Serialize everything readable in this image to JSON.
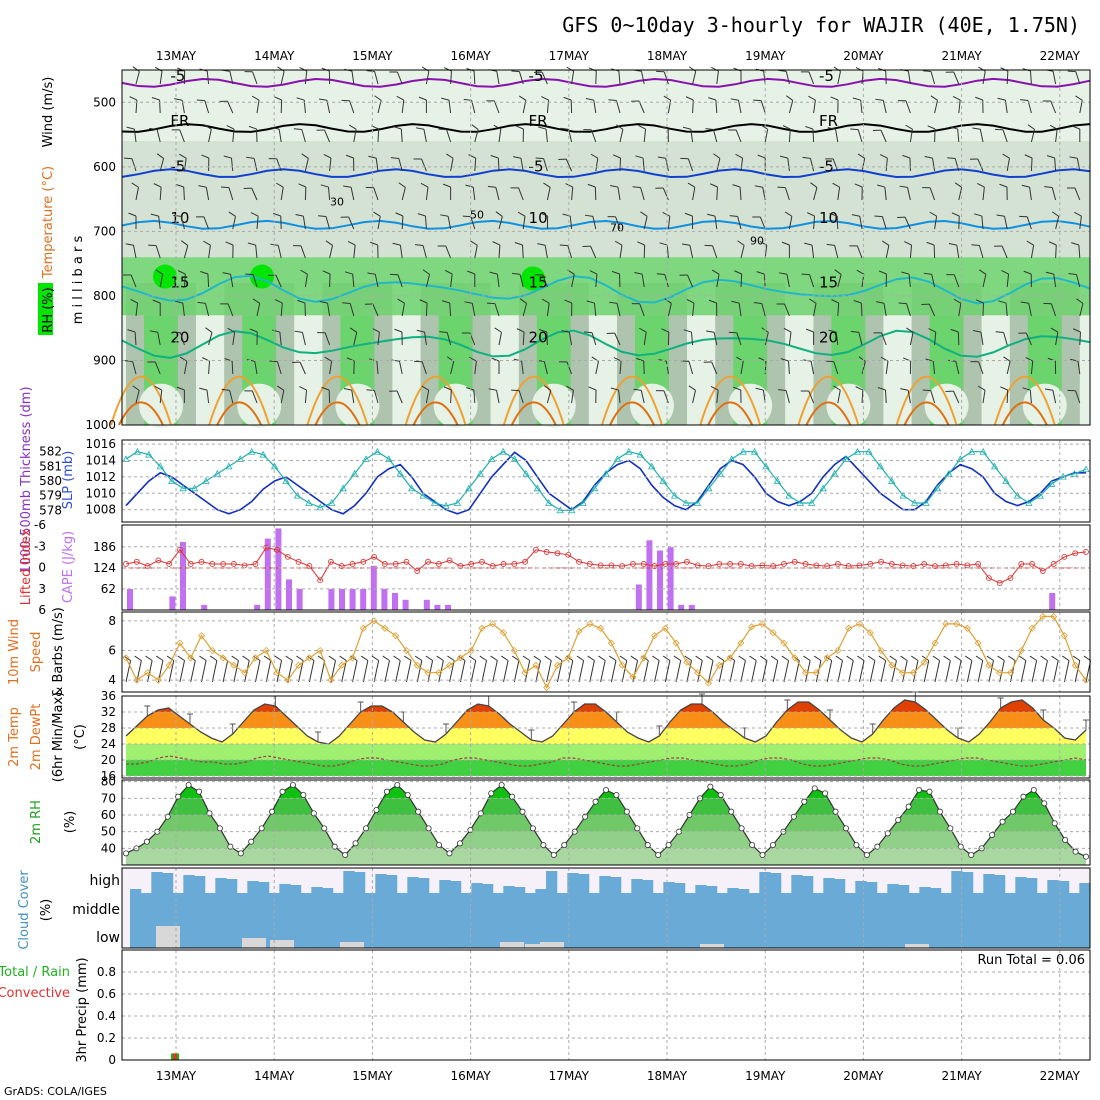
{
  "title": "GFS 0~10day 3-hourly for WAJIR (40E, 1.75N)",
  "credit": "GrADS: COLA/IGES",
  "dates": [
    "13MAY",
    "14MAY",
    "15MAY",
    "16MAY",
    "17MAY",
    "18MAY",
    "19MAY",
    "20MAY",
    "21MAY",
    "22MAY"
  ],
  "colors": {
    "grid": "#aaaaaa",
    "rh_light": "#e6f2e6",
    "rh_mid": "#c4d6c4",
    "rh_dark": "#a8bfa8",
    "rh_green": "#6cd46c",
    "rh_bright": "#00e600",
    "cloud": "#6aaad6",
    "cloud_bg": "#f6f0f8",
    "slp": "#1030c0",
    "thick": "#20b0b0",
    "cape": "#c070f0",
    "li": "#e03030",
    "wind": "#e0a030",
    "temp_hot": "#e04000",
    "temp_mid": "#f89018",
    "temp_warm": "#ffd040",
    "temp_yellow": "#ffff60",
    "dew_green": "#40d040",
    "rh_fill": "#30c030",
    "precip_green": "#00c000",
    "precip_red": "#e03030"
  },
  "chart_data": [
    {
      "panel": "upper-air",
      "type": "contour",
      "ylabel": "m i l l i b a r s",
      "side_labels": [
        "RH (%)",
        "Temperature (°C)",
        "Wind (m/s)"
      ],
      "y_ticks": [
        "500",
        "600",
        "700",
        "800",
        "900",
        "1000"
      ],
      "temperature_contours": [
        {
          "label": "-5",
          "color": "#8a10b0",
          "level_mb": 470
        },
        {
          "label": "FR",
          "color": "#000000",
          "level_mb": 540
        },
        {
          "label": "-5",
          "color": "#1040d0",
          "level_mb": 610
        },
        {
          "label": "10",
          "color": "#1090e0",
          "level_mb": 690
        },
        {
          "label": "15",
          "color": "#20b8c8",
          "level_mb": 790
        },
        {
          "label": "20",
          "color": "#10b080",
          "level_mb": 875
        }
      ],
      "rh_labels": [
        "30",
        "50",
        "70",
        "90"
      ]
    },
    {
      "panel": "thickness-slp",
      "type": "line",
      "ylabel_left": "1000-500mb Thickness (dm)",
      "ylabel_right": "SLP (mb)",
      "left_ticks": [
        "582",
        "581",
        "580",
        "579",
        "578"
      ],
      "right_ticks": [
        "1016",
        "1014",
        "1012",
        "1010",
        "1008"
      ],
      "series": [
        {
          "name": "SLP",
          "axis": "right",
          "values": [
            1008.5,
            1010,
            1011.5,
            1012.5,
            1012,
            1011,
            1010,
            1009,
            1008,
            1007.5,
            1008,
            1009,
            1010.5,
            1011.5,
            1012,
            1011,
            1010,
            1009,
            1008,
            1007.5,
            1008.5,
            1010,
            1012,
            1013,
            1013.5,
            1012,
            1010,
            1009,
            1008,
            1007.5,
            1008,
            1010,
            1012,
            1013.5,
            1015,
            1014,
            1012,
            1010,
            1009,
            1008,
            1009,
            1011,
            1012.5,
            1013.5,
            1014,
            1013,
            1011,
            1009.5,
            1008.5,
            1008,
            1009,
            1011,
            1013,
            1014,
            1013.5,
            1012,
            1010,
            1009,
            1008.5,
            1009,
            1010,
            1012,
            1013.5,
            1014.5,
            1013,
            1011.5,
            1010,
            1009,
            1008,
            1008,
            1009,
            1011,
            1012.5,
            1013.5,
            1013,
            1012,
            1010,
            1009,
            1008.5,
            1009,
            1010,
            1011.5,
            1012,
            1012.5,
            1012.5
          ]
        },
        {
          "name": "Thickness",
          "axis": "left",
          "values": [
            581.5,
            582,
            581.8,
            581,
            580,
            579.5,
            579.5,
            580,
            580.5,
            581,
            581.5,
            582,
            581.8,
            581,
            580,
            579,
            578.5,
            578.2,
            578.5,
            579.5,
            580.5,
            581.5,
            582,
            581.5,
            580.5,
            579.5,
            579,
            578.5,
            578.3,
            578.5,
            579.5,
            580.5,
            581.5,
            582,
            581.5,
            580.5,
            579.5,
            578.5,
            578,
            578,
            578.5,
            579.5,
            580.5,
            581.5,
            582,
            581.8,
            581,
            580,
            579,
            578.5,
            578.5,
            579.5,
            580.5,
            581.5,
            582,
            582,
            581,
            580,
            579,
            578.5,
            578.5,
            579.5,
            580.5,
            581.5,
            582,
            582,
            581,
            580,
            579,
            578.5,
            578.5,
            579.5,
            580.5,
            581.5,
            582,
            582,
            581,
            580,
            579,
            578.5,
            579,
            579.8,
            580.3,
            580.5,
            580.8
          ]
        }
      ]
    },
    {
      "panel": "cape-li",
      "type": "bar",
      "ylabel_left": "Lifted Index",
      "ylabel_right": "CAPE (J/kg)",
      "left_ticks": [
        "-6",
        "-3",
        "0",
        "3",
        "6"
      ],
      "right_ticks": [
        "186",
        "124",
        "62"
      ],
      "cape": [
        62,
        0,
        0,
        0,
        40,
        200,
        0,
        15,
        0,
        0,
        0,
        0,
        15,
        210,
        240,
        90,
        62,
        0,
        0,
        62,
        62,
        62,
        62,
        130,
        62,
        50,
        30,
        0,
        30,
        15,
        15,
        0,
        0,
        0,
        0,
        0,
        0,
        0,
        0,
        0,
        0,
        0,
        0,
        0,
        0,
        0,
        0,
        0,
        75,
        205,
        175,
        185,
        15,
        15,
        0,
        0,
        0,
        0,
        0,
        0,
        0,
        0,
        0,
        0,
        0,
        0,
        0,
        0,
        0,
        0,
        0,
        0,
        0,
        0,
        0,
        0,
        0,
        0,
        0,
        0,
        0,
        0,
        0,
        0,
        0,
        0,
        0,
        50,
        0,
        0,
        0,
        0,
        0,
        0,
        0,
        0,
        0,
        0,
        0,
        0,
        0,
        0,
        0,
        0,
        0,
        0,
        0,
        0,
        0,
        0,
        0,
        0,
        0,
        0,
        0,
        0,
        0,
        0,
        0,
        0,
        0,
        0,
        0,
        0,
        0,
        0,
        0,
        0,
        0,
        0,
        0,
        0,
        0,
        0,
        0,
        0,
        0,
        0,
        0,
        0,
        0,
        0,
        0,
        0,
        0,
        0,
        0,
        0,
        0,
        0,
        0
      ],
      "li": [
        -0.5,
        -0.8,
        -0.2,
        -1,
        -0.5,
        -2.5,
        -0.5,
        -0.8,
        -0.5,
        -0.5,
        -0.5,
        -0.3,
        -0.5,
        -2.8,
        -2.5,
        -1.5,
        -0.8,
        -0.2,
        1.8,
        -0.8,
        -0.2,
        -0.5,
        -0.8,
        -1.5,
        -0.5,
        -0.5,
        -0.8,
        0.5,
        -0.8,
        -0.5,
        -1,
        -0.2,
        -0.5,
        -0.8,
        -0.2,
        -0.5,
        -0.5,
        -0.8,
        -2.5,
        -2.2,
        -2,
        -1.8,
        -0.8,
        -0.5,
        -0.3,
        -0.3,
        -0.2,
        -0.5,
        -0.5,
        -0.2,
        -0.5,
        -0.5,
        -0.8,
        -0.3,
        -0.2,
        -0.5,
        -0.5,
        -0.5,
        -0.2,
        -0.3,
        -0.2,
        -0.5,
        -0.8,
        -0.5,
        -0.3,
        -0.2,
        -0.5,
        -0.2,
        -0.3,
        -0.5,
        -0.8,
        -0.5,
        -0.3,
        -0.2,
        -0.5,
        -0.2,
        -0.3,
        -0.5,
        -0.3,
        -0.5,
        1.5,
        2.2,
        1.5,
        -0.5,
        -0.5,
        0.5,
        -0.5,
        -1.5,
        -2,
        -2.2
      ]
    },
    {
      "panel": "wind10m",
      "type": "line",
      "ylabel": "10m Wind Speed & Barbs (m/s)",
      "y_ticks": [
        "8",
        "6",
        "4"
      ],
      "ylim": [
        3.2,
        8.6
      ],
      "values": [
        5.5,
        4,
        4.5,
        4,
        5,
        6.5,
        5.5,
        7,
        6,
        5.5,
        5,
        4.5,
        5.5,
        6,
        4.5,
        4,
        5,
        5.5,
        6,
        4,
        5,
        5.5,
        7.5,
        8,
        7.5,
        7,
        6,
        5,
        4.5,
        4.5,
        5,
        5.5,
        6,
        7.5,
        7.8,
        7.2,
        6,
        4.5,
        5,
        3.5,
        5,
        5.5,
        7.3,
        7.8,
        7.5,
        6.5,
        5,
        4.2,
        5.5,
        7,
        7.5,
        6.5,
        5.2,
        4.5,
        3.8,
        5,
        5.5,
        6.5,
        7.6,
        7.8,
        7.2,
        6.5,
        5.5,
        4.5,
        4.5,
        5.5,
        6,
        7.5,
        7.8,
        7.2,
        6,
        5,
        4.5,
        4.5,
        5.2,
        6.5,
        7.8,
        7.8,
        7.5,
        6.5,
        5,
        4.5,
        4.5,
        6,
        7.5,
        8.3,
        8.3,
        7,
        5,
        4
      ]
    },
    {
      "panel": "temp2m",
      "type": "area",
      "ylabel": "2m Temp 2m DewPt (6hr Min/Max) (°C)",
      "y_ticks": [
        "36",
        "32",
        "28",
        "24",
        "20",
        "16"
      ],
      "ylim": [
        15.5,
        36
      ],
      "temp": [
        26,
        28.5,
        31,
        32.5,
        33,
        31,
        29,
        27,
        25.5,
        24.5,
        26.5,
        29.5,
        32.5,
        34,
        33.5,
        31,
        28.5,
        26,
        24.5,
        24,
        26,
        29,
        32,
        33.5,
        33.5,
        32,
        29.5,
        27,
        25,
        24.5,
        26.5,
        29.5,
        32.5,
        34,
        33.5,
        31.5,
        29,
        27,
        25,
        24.5,
        26,
        29,
        32,
        34,
        34,
        32,
        29.5,
        27,
        25.5,
        24.5,
        26,
        29.5,
        32.5,
        34,
        34,
        32,
        29.5,
        27.5,
        25.5,
        24.5,
        26,
        29.5,
        32.5,
        34.5,
        34.5,
        32.5,
        30,
        27.5,
        25.5,
        24.5,
        26.5,
        30,
        33,
        35,
        34.5,
        32.5,
        30,
        27.5,
        25.5,
        24.5,
        26.5,
        29.5,
        33,
        34.5,
        35,
        33,
        30,
        28,
        25.5,
        25,
        27.5
      ],
      "dewpoint": [
        19,
        19,
        19.5,
        20.5,
        21,
        20.5,
        20,
        19.5,
        19.5,
        19,
        19,
        19.5,
        20.5,
        21,
        20.5,
        20,
        19.5,
        19,
        18.5,
        18.5,
        19,
        20,
        20.5,
        20.5,
        20,
        19.5,
        19,
        18.5,
        18.5,
        19,
        20,
        20.5,
        20.5,
        20,
        19.5,
        19,
        18.5,
        18.5,
        19,
        19.5,
        20.5,
        20.5,
        20,
        19.5,
        19,
        18.5,
        18.5,
        19,
        19.5,
        20,
        20.5,
        20.5,
        20,
        19.5,
        19,
        18.5,
        18.5,
        19,
        20,
        20.5,
        20.5,
        20,
        19,
        18.5,
        18.5,
        19,
        19.5,
        20,
        20.5,
        20.5,
        20,
        19,
        18.5,
        18.5,
        19,
        19.5,
        20,
        20.5,
        20.5,
        20,
        19.5,
        19,
        18.5,
        18.5,
        19,
        19.5,
        20,
        20.5,
        20
      ]
    },
    {
      "panel": "rh2m",
      "type": "area",
      "ylabel": "2m RH (%)",
      "y_ticks": [
        "80",
        "70",
        "60",
        "50",
        "40"
      ],
      "ylim": [
        30,
        81
      ],
      "values": [
        37,
        40,
        44,
        50,
        59,
        71,
        78,
        74,
        61,
        52,
        41,
        37,
        44,
        52,
        62,
        74,
        78,
        72,
        61,
        52,
        41,
        36,
        43,
        52,
        63,
        74,
        78,
        72,
        62,
        52,
        42,
        37,
        43,
        51,
        61,
        73,
        78,
        71,
        62,
        52,
        42,
        36,
        42,
        50,
        59,
        68,
        75,
        72,
        62,
        52,
        42,
        36,
        42,
        50,
        60,
        70,
        77,
        72,
        62,
        52,
        42,
        36,
        42,
        50,
        59,
        68,
        76,
        73,
        62,
        52,
        42,
        36,
        41,
        49,
        57,
        65,
        75,
        74,
        62,
        52,
        41,
        36,
        40,
        48,
        56,
        62,
        71,
        75,
        67,
        55,
        45,
        38,
        35
      ]
    },
    {
      "panel": "cloud",
      "type": "bar",
      "ylabel": "Cloud Cover (%)",
      "levels": [
        "high",
        "middle",
        "low"
      ]
    },
    {
      "panel": "precip",
      "type": "bar",
      "ylabel": "3hr Precip (mm)",
      "side_labels": [
        "Total / Rain",
        "Convective"
      ],
      "y_ticks": [
        "0.8",
        "0.6",
        "0.4",
        "0.2",
        "0"
      ],
      "ylim": [
        0,
        1.0
      ],
      "run_total": "Run Total = 0.06",
      "values": [
        {
          "index": 5,
          "value": 0.06
        }
      ]
    }
  ]
}
